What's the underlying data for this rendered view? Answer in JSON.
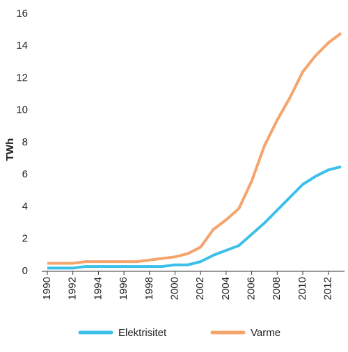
{
  "chart_data": {
    "type": "line",
    "y_label": "TWh",
    "x": [
      1990,
      1991,
      1992,
      1993,
      1994,
      1995,
      1996,
      1997,
      1998,
      1999,
      2000,
      2001,
      2002,
      2003,
      2004,
      2005,
      2006,
      2007,
      2008,
      2009,
      2010,
      2011,
      2012,
      2013
    ],
    "series": [
      {
        "name": "Elektrisitet",
        "color": "#3cbfe9",
        "values": [
          0.2,
          0.2,
          0.2,
          0.3,
          0.3,
          0.3,
          0.3,
          0.3,
          0.3,
          0.3,
          0.4,
          0.4,
          0.6,
          1.0,
          1.3,
          1.6,
          2.3,
          3.0,
          3.8,
          4.6,
          5.4,
          5.9,
          6.3,
          6.5
        ]
      },
      {
        "name": "Varme",
        "color": "#f5a46c",
        "values": [
          0.5,
          0.5,
          0.5,
          0.6,
          0.6,
          0.6,
          0.6,
          0.6,
          0.7,
          0.8,
          0.9,
          1.1,
          1.5,
          2.6,
          3.2,
          3.9,
          5.6,
          7.8,
          9.4,
          10.8,
          12.4,
          13.4,
          14.2,
          14.8
        ]
      }
    ],
    "xlim": [
      1990,
      2013
    ],
    "xticks": [
      1990,
      1992,
      1994,
      1996,
      1998,
      2000,
      2002,
      2004,
      2006,
      2008,
      2010,
      2012
    ],
    "ylim": [
      0,
      16
    ],
    "yticks": [
      0,
      2,
      4,
      6,
      8,
      10,
      12,
      14,
      16
    ],
    "legend": "bottom"
  }
}
